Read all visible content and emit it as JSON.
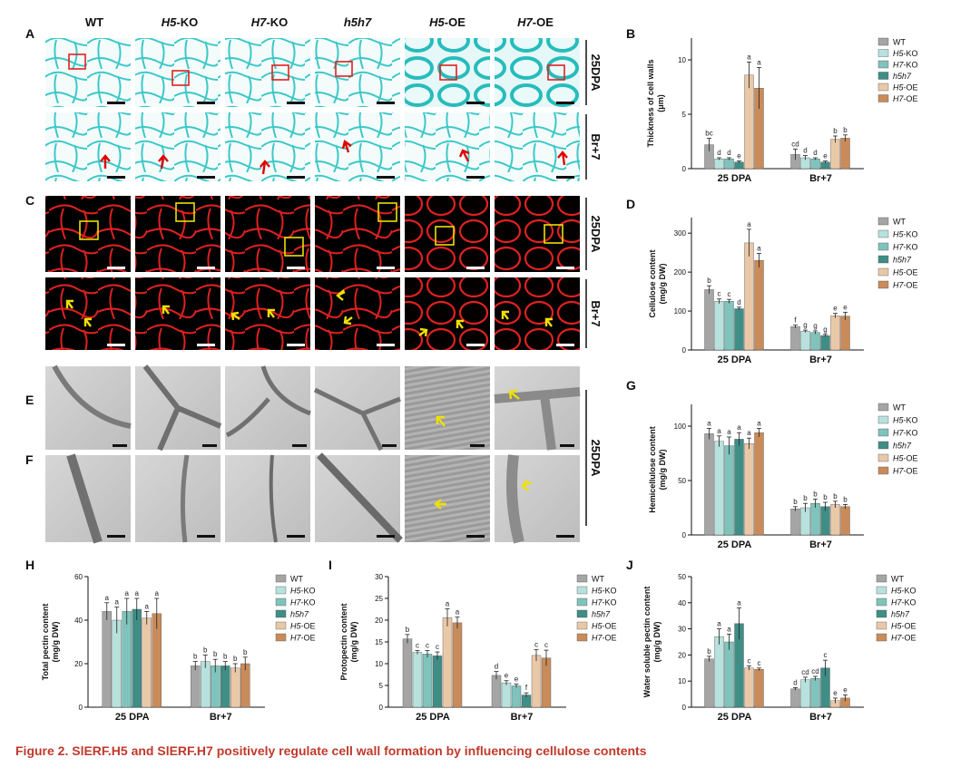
{
  "column_headers": [
    {
      "italic": "",
      "plain": "WT"
    },
    {
      "italic": "H5",
      "plain": "-KO"
    },
    {
      "italic": "H7",
      "plain": "-KO"
    },
    {
      "italic": "h5h7",
      "plain": ""
    },
    {
      "italic": "H5",
      "plain": "-OE"
    },
    {
      "italic": "H7",
      "plain": "-OE"
    }
  ],
  "panel_letters": {
    "A": "A",
    "B": "B",
    "C": "C",
    "D": "D",
    "E": "E",
    "F": "F",
    "G": "G",
    "H": "H",
    "I": "I",
    "J": "J"
  },
  "row_labels": {
    "a_top": "25DPA",
    "a_bottom": "Br+7",
    "c_top": "25DPA",
    "c_bottom": "Br+7",
    "ef": "25DPA"
  },
  "caption": "Figure 2.  SlERF.H5 and SlERF.H7 positively regulate cell wall formation by influencing cellulose contents",
  "colors": {
    "caption": "#c0392b",
    "stain_cyan": "#3cc8c8",
    "stain_red": "#e02020",
    "box_red": "#e02020",
    "box_yellow": "#e8e000",
    "arrow_red": "#e00000",
    "arrow_yellow": "#f0e000"
  },
  "chart_data": [
    {
      "id": "B",
      "type": "bar",
      "ylabel": "Thickness of cell walls (μm)",
      "ylim": [
        0,
        12
      ],
      "yticks": [
        0,
        5,
        10
      ],
      "categories": [
        "25 DPA",
        "Br+7"
      ],
      "legend_position": "right",
      "series": [
        {
          "name": "WT",
          "values": [
            2.2,
            1.3
          ],
          "errors": [
            0.6,
            0.5
          ],
          "letters": [
            "bc",
            "cd"
          ],
          "color": "#a5a5a5"
        },
        {
          "name": "H5-KO",
          "values": [
            0.9,
            1.0
          ],
          "errors": [
            0.1,
            0.2
          ],
          "letters": [
            "d",
            "d"
          ],
          "color": "#b7e1dd"
        },
        {
          "name": "H7-KO",
          "values": [
            0.9,
            0.9
          ],
          "errors": [
            0.1,
            0.1
          ],
          "letters": [
            "d",
            "d"
          ],
          "color": "#7fc3bc"
        },
        {
          "name": "h5h7",
          "values": [
            0.6,
            0.6
          ],
          "errors": [
            0.1,
            0.1
          ],
          "letters": [
            "e",
            "e"
          ],
          "color": "#3f8e86"
        },
        {
          "name": "H5-OE",
          "values": [
            8.6,
            2.7
          ],
          "errors": [
            1.2,
            0.3
          ],
          "letters": [
            "a",
            "b"
          ],
          "color": "#e9c8a8"
        },
        {
          "name": "H7-OE",
          "values": [
            7.4,
            2.8
          ],
          "errors": [
            1.9,
            0.3
          ],
          "letters": [
            "a",
            "b"
          ],
          "color": "#c98b5a"
        }
      ]
    },
    {
      "id": "D",
      "type": "bar",
      "ylabel": "Cellulose content (mg/g DW)",
      "ylim": [
        0,
        340
      ],
      "yticks": [
        0,
        100,
        200,
        300
      ],
      "categories": [
        "25 DPA",
        "Br+7"
      ],
      "legend_position": "right",
      "series": [
        {
          "name": "WT",
          "values": [
            155,
            60
          ],
          "errors": [
            10,
            4
          ],
          "letters": [
            "b",
            "f"
          ],
          "color": "#a5a5a5"
        },
        {
          "name": "H5-KO",
          "values": [
            125,
            48
          ],
          "errors": [
            6,
            3
          ],
          "letters": [
            "c",
            "g"
          ],
          "color": "#b7e1dd"
        },
        {
          "name": "H7-KO",
          "values": [
            125,
            45
          ],
          "errors": [
            5,
            4
          ],
          "letters": [
            "c",
            "g"
          ],
          "color": "#7fc3bc"
        },
        {
          "name": "h5h7",
          "values": [
            106,
            37
          ],
          "errors": [
            4,
            3
          ],
          "letters": [
            "d",
            "g"
          ],
          "color": "#3f8e86"
        },
        {
          "name": "H5-OE",
          "values": [
            275,
            88
          ],
          "errors": [
            35,
            6
          ],
          "letters": [
            "a",
            "e"
          ],
          "color": "#e9c8a8"
        },
        {
          "name": "H7-OE",
          "values": [
            230,
            87
          ],
          "errors": [
            18,
            10
          ],
          "letters": [
            "a",
            "e"
          ],
          "color": "#c98b5a"
        }
      ]
    },
    {
      "id": "G",
      "type": "bar",
      "ylabel": "Hemicellulose content (mg/g DW)",
      "ylim": [
        0,
        120
      ],
      "yticks": [
        0,
        50,
        100
      ],
      "categories": [
        "25 DPA",
        "Br+7"
      ],
      "legend_position": "right",
      "series": [
        {
          "name": "WT",
          "values": [
            93,
            24
          ],
          "errors": [
            5,
            2
          ],
          "letters": [
            "a",
            "b"
          ],
          "color": "#a5a5a5"
        },
        {
          "name": "H5-KO",
          "values": [
            86,
            25
          ],
          "errors": [
            5,
            4
          ],
          "letters": [
            "a",
            "b"
          ],
          "color": "#b7e1dd"
        },
        {
          "name": "H7-KO",
          "values": [
            82,
            29
          ],
          "errors": [
            8,
            4
          ],
          "letters": [
            "a",
            "b"
          ],
          "color": "#7fc3bc"
        },
        {
          "name": "h5h7",
          "values": [
            88,
            26
          ],
          "errors": [
            6,
            4
          ],
          "letters": [
            "a",
            "b"
          ],
          "color": "#3f8e86"
        },
        {
          "name": "H5-OE",
          "values": [
            84,
            28
          ],
          "errors": [
            5,
            3
          ],
          "letters": [
            "a",
            "b"
          ],
          "color": "#e9c8a8"
        },
        {
          "name": "H7-OE",
          "values": [
            94,
            26
          ],
          "errors": [
            4,
            2
          ],
          "letters": [
            "a",
            "b"
          ],
          "color": "#c98b5a"
        }
      ]
    },
    {
      "id": "H",
      "type": "bar",
      "ylabel": "Total pectin content (mg/g DW)",
      "ylim": [
        0,
        60
      ],
      "yticks": [
        0,
        20,
        40,
        60
      ],
      "categories": [
        "25 DPA",
        "Br+7"
      ],
      "legend_position": "right",
      "series": [
        {
          "name": "WT",
          "values": [
            44,
            19
          ],
          "errors": [
            4,
            2
          ],
          "letters": [
            "a",
            "b"
          ],
          "color": "#a5a5a5"
        },
        {
          "name": "H5-KO",
          "values": [
            40,
            21
          ],
          "errors": [
            6,
            3
          ],
          "letters": [
            "a",
            "b"
          ],
          "color": "#b7e1dd"
        },
        {
          "name": "H7-KO",
          "values": [
            44,
            19
          ],
          "errors": [
            6,
            3
          ],
          "letters": [
            "a",
            "b"
          ],
          "color": "#7fc3bc"
        },
        {
          "name": "h5h7",
          "values": [
            45,
            19
          ],
          "errors": [
            5,
            2
          ],
          "letters": [
            "a",
            "b"
          ],
          "color": "#3f8e86"
        },
        {
          "name": "H5-OE",
          "values": [
            41,
            18
          ],
          "errors": [
            3,
            2
          ],
          "letters": [
            "a",
            "b"
          ],
          "color": "#e9c8a8"
        },
        {
          "name": "H7-OE",
          "values": [
            43,
            20
          ],
          "errors": [
            7,
            3
          ],
          "letters": [
            "a",
            "b"
          ],
          "color": "#c98b5a"
        }
      ]
    },
    {
      "id": "I",
      "type": "bar",
      "ylabel": "Protopectin content (mg/g DW)",
      "ylim": [
        0,
        30
      ],
      "yticks": [
        0,
        5,
        10,
        15,
        20,
        25,
        30
      ],
      "categories": [
        "25 DPA",
        "Br+7"
      ],
      "legend_position": "right",
      "series": [
        {
          "name": "WT",
          "values": [
            15.7,
            7.3
          ],
          "errors": [
            1.0,
            0.9
          ],
          "letters": [
            "b",
            "d"
          ],
          "color": "#a5a5a5"
        },
        {
          "name": "H5-KO",
          "values": [
            12.6,
            5.6
          ],
          "errors": [
            0.4,
            0.5
          ],
          "letters": [
            "c",
            "e"
          ],
          "color": "#b7e1dd"
        },
        {
          "name": "H7-KO",
          "values": [
            12.2,
            4.9
          ],
          "errors": [
            0.8,
            0.4
          ],
          "letters": [
            "c",
            "e"
          ],
          "color": "#7fc3bc"
        },
        {
          "name": "h5h7",
          "values": [
            11.8,
            2.8
          ],
          "errors": [
            0.9,
            0.5
          ],
          "letters": [
            "c",
            "f"
          ],
          "color": "#3f8e86"
        },
        {
          "name": "H5-OE",
          "values": [
            20.6,
            11.9
          ],
          "errors": [
            2.0,
            1.3
          ],
          "letters": [
            "a",
            "c"
          ],
          "color": "#e9c8a8"
        },
        {
          "name": "H7-OE",
          "values": [
            19.4,
            11.3
          ],
          "errors": [
            1.3,
            1.8
          ],
          "letters": [
            "a",
            "c"
          ],
          "color": "#c98b5a"
        }
      ]
    },
    {
      "id": "J",
      "type": "bar",
      "ylabel": "Water soluble pectin content (mg/g DW)",
      "ylim": [
        0,
        50
      ],
      "yticks": [
        0,
        10,
        20,
        30,
        40,
        50
      ],
      "categories": [
        "25 DPA",
        "Br+7"
      ],
      "legend_position": "right",
      "series": [
        {
          "name": "WT",
          "values": [
            18.5,
            7.0
          ],
          "errors": [
            1.0,
            0.5
          ],
          "letters": [
            "b",
            "d"
          ],
          "color": "#a5a5a5"
        },
        {
          "name": "H5-KO",
          "values": [
            27,
            10.5
          ],
          "errors": [
            3,
            1
          ],
          "letters": [
            "a",
            "cd"
          ],
          "color": "#b7e1dd"
        },
        {
          "name": "H7-KO",
          "values": [
            25,
            11.0
          ],
          "errors": [
            3,
            0.8
          ],
          "letters": [
            "a",
            "cd"
          ],
          "color": "#7fc3bc"
        },
        {
          "name": "h5h7",
          "values": [
            32,
            15
          ],
          "errors": [
            6,
            3
          ],
          "letters": [
            "a",
            "c"
          ],
          "color": "#3f8e86"
        },
        {
          "name": "H5-OE",
          "values": [
            15,
            2.5
          ],
          "errors": [
            0.8,
            1.0
          ],
          "letters": [
            "c",
            "e"
          ],
          "color": "#e9c8a8"
        },
        {
          "name": "H7-OE",
          "values": [
            14.5,
            3.5
          ],
          "errors": [
            0.5,
            1.2
          ],
          "letters": [
            "c",
            "e"
          ],
          "color": "#c98b5a"
        }
      ]
    }
  ]
}
